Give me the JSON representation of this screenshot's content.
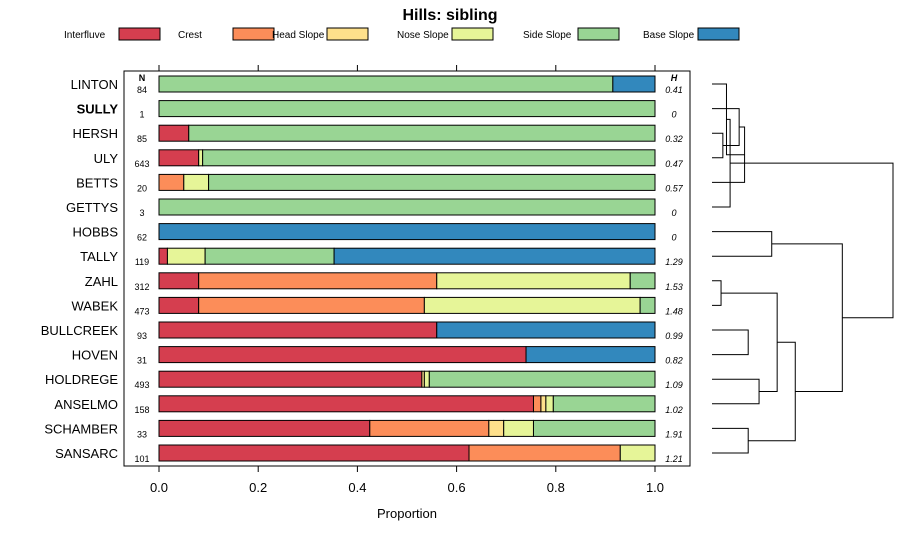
{
  "chart_data": {
    "type": "stacked-bar",
    "title": "Hills: sibling",
    "xlabel": "Proportion",
    "xlim": [
      0,
      1
    ],
    "xticks": [
      "0.0",
      "0.2",
      "0.4",
      "0.6",
      "0.8",
      "1.0"
    ],
    "n_header": "N",
    "h_header": "H",
    "legend": [
      {
        "name": "Interfluve",
        "color": "#d53e4f"
      },
      {
        "name": "Crest",
        "color": "#fc8d59"
      },
      {
        "name": "Head Slope",
        "color": "#fee08b"
      },
      {
        "name": "Nose Slope",
        "color": "#e6f598"
      },
      {
        "name": "Side Slope",
        "color": "#99d594"
      },
      {
        "name": "Base Slope",
        "color": "#3288bd"
      }
    ],
    "rows": [
      {
        "label": "LINTON",
        "n": "84",
        "h": "0.41",
        "bold": false,
        "values": [
          0,
          0,
          0,
          0,
          0.915,
          0.085
        ]
      },
      {
        "label": "SULLY",
        "n": "1",
        "h": "0",
        "bold": true,
        "values": [
          0,
          0,
          0,
          0,
          1.0,
          0
        ]
      },
      {
        "label": "HERSH",
        "n": "85",
        "h": "0.32",
        "bold": false,
        "values": [
          0.06,
          0,
          0,
          0,
          0.94,
          0
        ]
      },
      {
        "label": "ULY",
        "n": "643",
        "h": "0.47",
        "bold": false,
        "values": [
          0.08,
          0,
          0,
          0.008,
          0.912,
          0
        ]
      },
      {
        "label": "BETTS",
        "n": "20",
        "h": "0.57",
        "bold": false,
        "values": [
          0,
          0.05,
          0,
          0.05,
          0.9,
          0
        ]
      },
      {
        "label": "GETTYS",
        "n": "3",
        "h": "0",
        "bold": false,
        "values": [
          0,
          0,
          0,
          0,
          1.0,
          0
        ]
      },
      {
        "label": "HOBBS",
        "n": "62",
        "h": "0",
        "bold": false,
        "values": [
          0,
          0,
          0,
          0,
          0,
          1.0
        ]
      },
      {
        "label": "TALLY",
        "n": "119",
        "h": "1.29",
        "bold": false,
        "values": [
          0.017,
          0,
          0,
          0.076,
          0.26,
          0.647
        ]
      },
      {
        "label": "ZAHL",
        "n": "312",
        "h": "1.53",
        "bold": false,
        "values": [
          0.08,
          0.48,
          0,
          0.39,
          0.05,
          0
        ]
      },
      {
        "label": "WABEK",
        "n": "473",
        "h": "1.48",
        "bold": false,
        "values": [
          0.08,
          0.455,
          0,
          0.435,
          0.03,
          0
        ]
      },
      {
        "label": "BULLCREEK",
        "n": "93",
        "h": "0.99",
        "bold": false,
        "values": [
          0.56,
          0,
          0,
          0,
          0,
          0.44
        ]
      },
      {
        "label": "HOVEN",
        "n": "31",
        "h": "0.82",
        "bold": false,
        "values": [
          0.74,
          0,
          0,
          0,
          0,
          0.26
        ]
      },
      {
        "label": "HOLDREGE",
        "n": "493",
        "h": "1.09",
        "bold": false,
        "values": [
          0.53,
          0,
          0.005,
          0.01,
          0.455,
          0
        ]
      },
      {
        "label": "ANSELMO",
        "n": "158",
        "h": "1.02",
        "bold": false,
        "values": [
          0.755,
          0.015,
          0.01,
          0.015,
          0.205,
          0
        ]
      },
      {
        "label": "SCHAMBER",
        "n": "33",
        "h": "1.91",
        "bold": false,
        "values": [
          0.425,
          0.24,
          0.03,
          0.06,
          0.245,
          0
        ]
      },
      {
        "label": "SANSARC",
        "n": "101",
        "h": "1.21",
        "bold": false,
        "values": [
          0.625,
          0.305,
          0,
          0.07,
          0,
          0
        ]
      }
    ],
    "dendrogram_merges": [
      {
        "a": 2,
        "b": 3,
        "height": 0.06
      },
      {
        "a": 16,
        "b": 1,
        "height": 0.15
      },
      {
        "a": 17,
        "b": 4,
        "height": 0.18
      },
      {
        "a": 8,
        "b": 9,
        "height": 0.05
      },
      {
        "a": 10,
        "b": 11,
        "height": 0.2
      },
      {
        "a": 14,
        "b": 15,
        "height": 0.2
      },
      {
        "a": 12,
        "b": 13,
        "height": 0.26
      },
      {
        "a": 19,
        "b": 22,
        "height": 0.36
      },
      {
        "a": 21,
        "b": 23,
        "height": 0.46
      },
      {
        "a": 18,
        "b": 0,
        "height": 0.08
      },
      {
        "a": 25,
        "b": 5,
        "height": 0.1
      },
      {
        "a": 6,
        "b": 7,
        "height": 0.33
      },
      {
        "a": 24,
        "b": 27,
        "height": 0.72
      },
      {
        "a": 26,
        "b": 28,
        "height": 1.0
      }
    ]
  }
}
